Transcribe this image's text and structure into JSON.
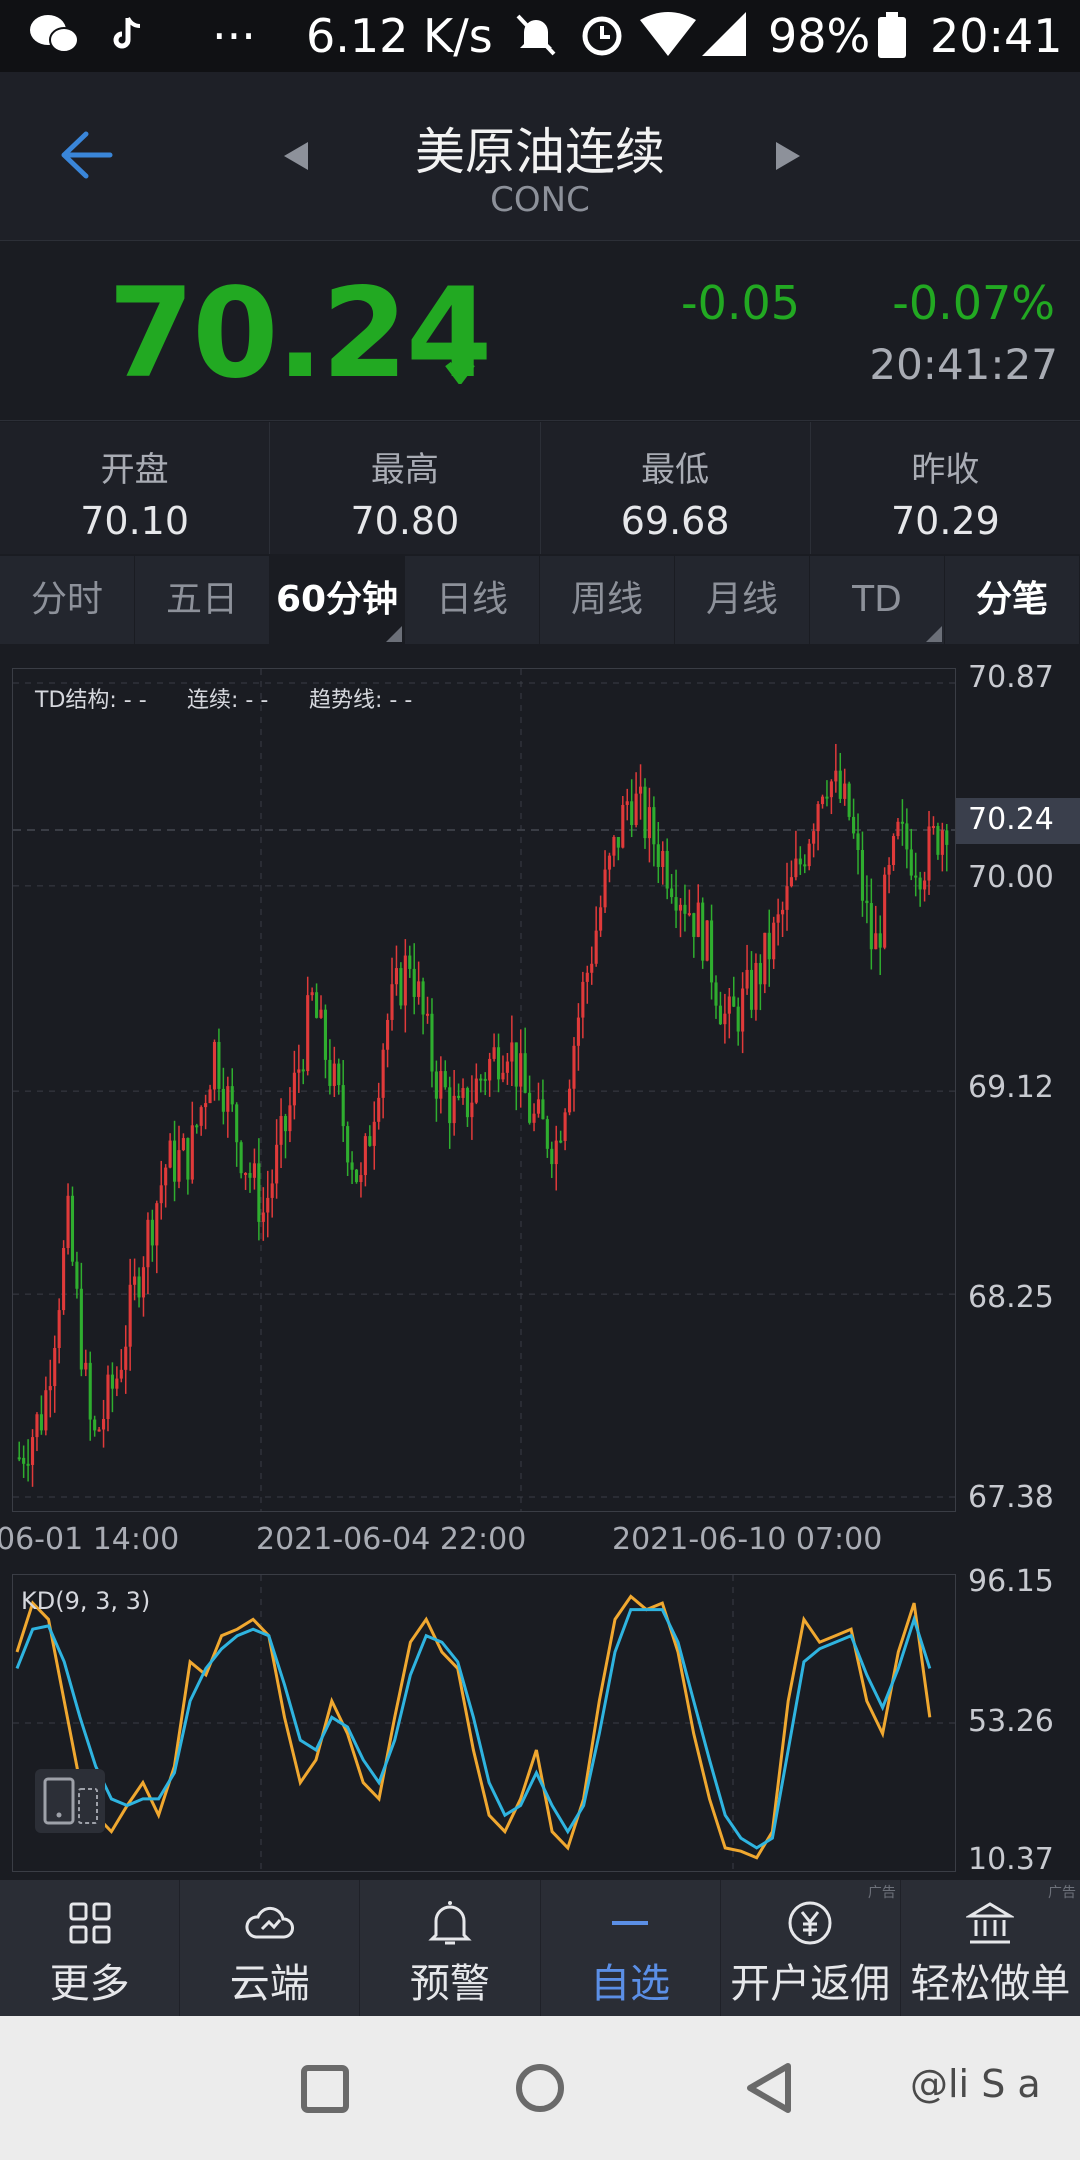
{
  "status_bar": {
    "net_speed": "6.12 K/s",
    "battery": "98%",
    "time": "20:41",
    "icons": [
      "wechat-icon",
      "tiktok-icon",
      "more-icon",
      "mute-icon",
      "alarm-icon",
      "wifi-icon",
      "signal-icon",
      "battery-icon"
    ]
  },
  "header": {
    "title": "美原油连续",
    "subtitle": "CONC",
    "back_icon": "back-arrow-icon"
  },
  "quote": {
    "price": "70.24",
    "change": "-0.05",
    "change_pct": "-0.07%",
    "time": "20:41:27",
    "color": "#22a922"
  },
  "stats": [
    {
      "label": "开盘",
      "value": "70.10"
    },
    {
      "label": "最高",
      "value": "70.80"
    },
    {
      "label": "最低",
      "value": "69.68"
    },
    {
      "label": "昨收",
      "value": "70.29"
    }
  ],
  "tabs": [
    {
      "label": "分时"
    },
    {
      "label": "五日"
    },
    {
      "label": "60分钟"
    },
    {
      "label": "日线"
    },
    {
      "label": "周线"
    },
    {
      "label": "月线"
    },
    {
      "label": "TD"
    },
    {
      "label": "分笔"
    }
  ],
  "chart": {
    "indicator": {
      "td": "TD结构: - -",
      "cont": "连续: - -",
      "trend": "趋势线: - -"
    },
    "y_labels": [
      "70.87",
      "70.00",
      "69.12",
      "68.25",
      "67.38"
    ],
    "current_price_label": "70.24",
    "x_labels": [
      "06-01 14:00",
      "2021-06-04 22:00",
      "2021-06-10 07:00"
    ]
  },
  "kd": {
    "label": "KD(9, 3, 3)",
    "y_labels": [
      "96.15",
      "53.26",
      "10.37"
    ]
  },
  "chart_data": {
    "type": "candlestick",
    "ylim": [
      67.38,
      70.87
    ],
    "key_points": [
      67.55,
      67.75,
      68.55,
      67.6,
      67.9,
      68.4,
      68.8,
      68.85,
      69.3,
      68.9,
      68.6,
      69.0,
      69.5,
      69.1,
      68.7,
      69.4,
      69.7,
      69.2,
      69.0,
      69.2,
      69.35,
      69.0,
      68.9,
      69.5,
      70.0,
      70.4,
      70.2,
      70.0,
      69.8,
      69.4,
      69.55,
      69.8,
      70.1,
      70.5,
      70.3,
      69.7,
      70.2,
      70.1,
      70.3
    ]
  },
  "kd_data": {
    "ylim": [
      10.37,
      96.15
    ],
    "k": [
      75,
      90,
      85,
      60,
      35,
      25,
      20,
      28,
      35,
      25,
      40,
      72,
      68,
      80,
      82,
      85,
      80,
      55,
      35,
      42,
      60,
      50,
      35,
      30,
      55,
      78,
      85,
      75,
      70,
      45,
      25,
      20,
      30,
      45,
      20,
      15,
      30,
      60,
      85,
      92,
      88,
      90,
      75,
      50,
      30,
      15,
      14,
      12,
      20,
      60,
      85,
      78,
      80,
      82,
      60,
      50,
      75,
      90,
      55
    ],
    "d": [
      70,
      82,
      83,
      72,
      55,
      40,
      30,
      28,
      30,
      30,
      38,
      60,
      70,
      76,
      80,
      82,
      80,
      65,
      48,
      45,
      55,
      52,
      42,
      35,
      48,
      68,
      80,
      78,
      72,
      55,
      35,
      25,
      28,
      38,
      28,
      20,
      28,
      50,
      75,
      88,
      88,
      88,
      78,
      60,
      42,
      25,
      18,
      15,
      18,
      45,
      72,
      76,
      78,
      80,
      68,
      58,
      70,
      85,
      70
    ]
  },
  "bottom_nav": [
    {
      "label": "更多",
      "icon": "grid-icon"
    },
    {
      "label": "云端",
      "icon": "cloud-icon"
    },
    {
      "label": "预警",
      "icon": "bell-icon"
    },
    {
      "label": "自选",
      "icon": "minus-icon"
    },
    {
      "label": "开户返佣",
      "icon": "yen-icon",
      "ad": "广告"
    },
    {
      "label": "轻松做单",
      "icon": "bank-icon",
      "ad": "广告"
    }
  ],
  "system_nav": [
    "square-icon",
    "circle-icon",
    "back-triangle-icon"
  ],
  "watermark": "@li S a"
}
